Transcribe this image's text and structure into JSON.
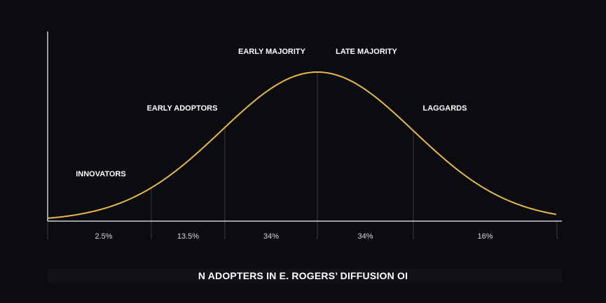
{
  "chart_data": {
    "type": "area",
    "title": "N ADOPTERS IN E. ROGERS’ DIFFUSION OI",
    "curve": "bell",
    "segments": [
      {
        "name": "INNOVATORS",
        "share": 2.5,
        "pct_label": "2.5%"
      },
      {
        "name": "EARLY ADOPTORS",
        "share": 13.5,
        "pct_label": "13.5%"
      },
      {
        "name": "EARLY MAJORITY",
        "share": 34,
        "pct_label": "34%"
      },
      {
        "name": "LATE MAJORITY",
        "share": 34,
        "pct_label": "34%"
      },
      {
        "name": "LAGGARDS",
        "share": 16,
        "pct_label": "16%"
      }
    ],
    "grid": false,
    "legend": "none"
  },
  "colors": {
    "background": "#0b0c10",
    "curve": "#e8b84a",
    "axis": "#cfcfcf",
    "divider": "#3a3d44",
    "text": "#ffffff"
  }
}
